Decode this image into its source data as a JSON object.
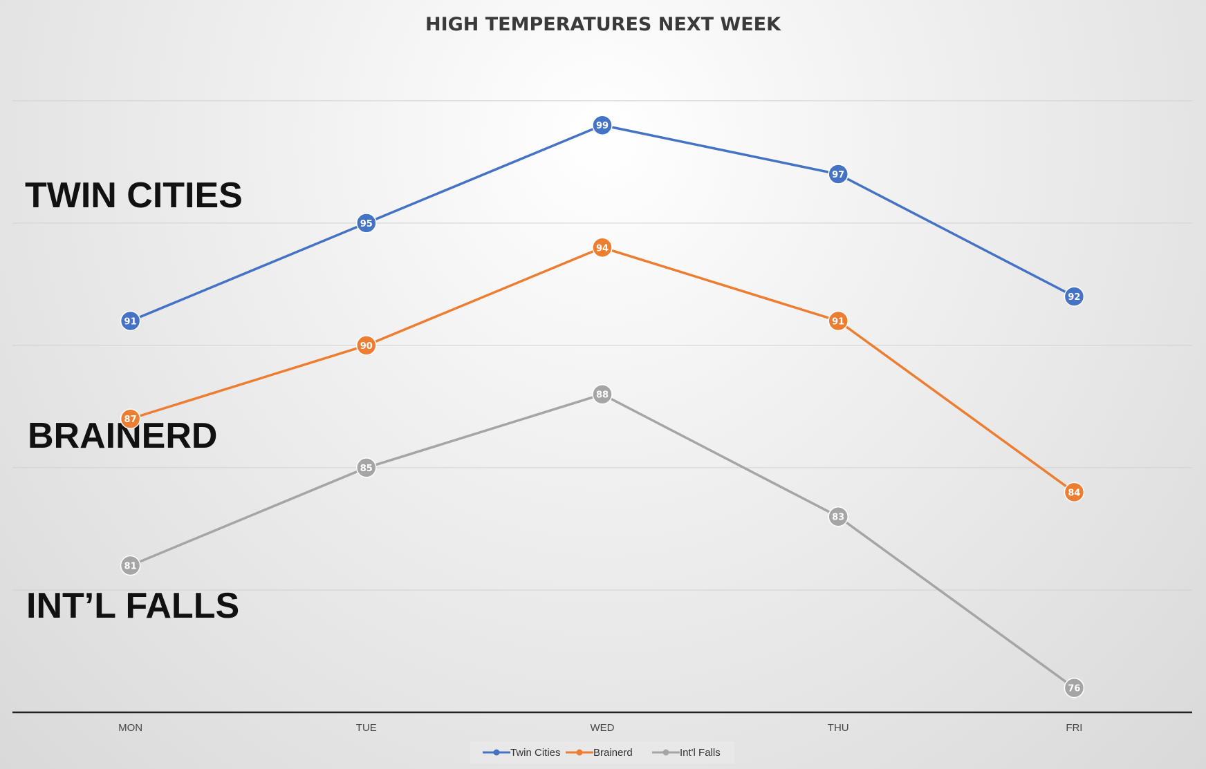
{
  "chart_data": {
    "type": "line",
    "title": "HIGH TEMPERATURES NEXT WEEK",
    "categories": [
      "MON",
      "TUE",
      "WED",
      "THU",
      "FRI"
    ],
    "ylim": [
      75,
      102
    ],
    "grid": true,
    "legend_position": "bottom",
    "series": [
      {
        "name": "Twin Cities",
        "color": "#4472C4",
        "values": [
          91,
          95,
          99,
          97,
          92
        ]
      },
      {
        "name": "Brainerd",
        "color": "#ED7D31",
        "values": [
          87,
          90,
          94,
          91,
          84
        ]
      },
      {
        "name": "Int'l Falls",
        "color": "#A5A5A5",
        "values": [
          81,
          85,
          88,
          83,
          76
        ]
      }
    ],
    "annotations": [
      "TWIN CITIES",
      "BRAINERD",
      "INT’L FALLS"
    ]
  }
}
